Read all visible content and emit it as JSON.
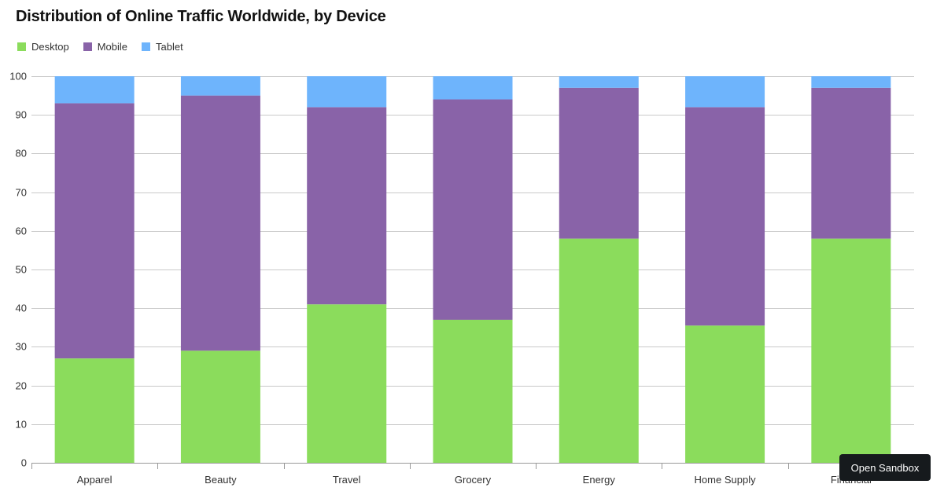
{
  "colors": {
    "desktop": "#8bdc5c",
    "mobile": "#8963a8",
    "tablet": "#6eb4fc",
    "grid": "#c8c8c8",
    "axis": "#999999",
    "button_bg": "#161a1d"
  },
  "button": {
    "label": "Open Sandbox"
  },
  "chart_data": {
    "type": "bar",
    "stacked": true,
    "title": "Distribution of Online Traffic Worldwide, by Device",
    "xlabel": "",
    "ylabel": "",
    "ylim": [
      0,
      100
    ],
    "yticks": [
      "0",
      "10",
      "20",
      "30",
      "40",
      "50",
      "60",
      "70",
      "80",
      "90",
      "100"
    ],
    "grid": true,
    "legend_position": "top-left",
    "categories": [
      "Apparel",
      "Beauty",
      "Travel",
      "Grocery",
      "Energy",
      "Home Supply",
      "Financial"
    ],
    "series": [
      {
        "name": "Desktop",
        "color_key": "desktop",
        "values": [
          27,
          29,
          41,
          37,
          58,
          35.5,
          58
        ]
      },
      {
        "name": "Mobile",
        "color_key": "mobile",
        "values": [
          66,
          66,
          51,
          57,
          39,
          56.5,
          39
        ]
      },
      {
        "name": "Tablet",
        "color_key": "tablet",
        "values": [
          7,
          5,
          8,
          6,
          3,
          8,
          3
        ]
      }
    ]
  }
}
